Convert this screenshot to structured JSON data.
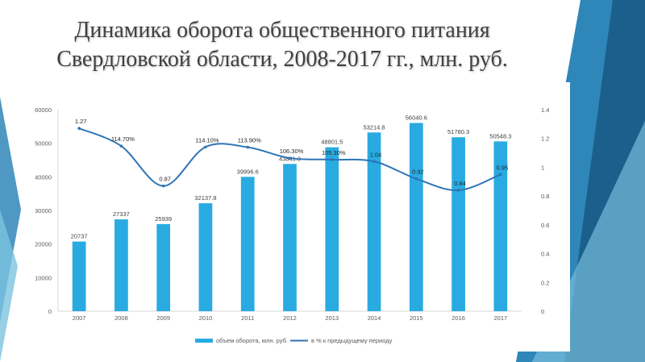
{
  "slide": {
    "title_line1": "Динамика оборота общественного питания",
    "title_line2": "Свердловской области, 2008-2017 гг., млн. руб."
  },
  "colors": {
    "bar": "#29abe2",
    "line": "#2e75b6",
    "deco_dark": "#1b5f8c",
    "deco_mid": "#2f86b8",
    "deco_light": "#7cc3e0"
  },
  "chart_data": {
    "type": "bar",
    "categories": [
      "2007",
      "2008",
      "2009",
      "2010",
      "2011",
      "2012",
      "2013",
      "2014",
      "2015",
      "2016",
      "2017"
    ],
    "series": [
      {
        "name": "объем оборота, млн. руб.",
        "type": "bar",
        "axis": "left",
        "values": [
          20737,
          27337,
          25939,
          32137.8,
          39996.6,
          43841.3,
          48801.5,
          53214.8,
          56040.6,
          51780.3,
          50548.3
        ],
        "labels": [
          "20737",
          "27337",
          "25939",
          "32137.8",
          "39996.6",
          "43841.3",
          "48801.5",
          "53214.8",
          "56040.6",
          "51780.3",
          "50548.3"
        ]
      },
      {
        "name": "в % к предыдущему периоду",
        "type": "line",
        "axis": "right",
        "values": [
          1.27,
          1.147,
          0.87,
          1.141,
          1.139,
          1.063,
          1.053,
          1.04,
          0.92,
          0.84,
          0.95
        ],
        "labels": [
          "1.27",
          "114.70%",
          "0.87",
          "114.10%",
          "113.90%",
          "106.30%",
          "105.30%",
          "1.04",
          "0.92",
          "0.84",
          "0.95"
        ]
      }
    ],
    "y_left": {
      "min": 0,
      "max": 60000,
      "ticks": [
        "0",
        "10000",
        "20000",
        "30000",
        "40000",
        "50000",
        "60000"
      ]
    },
    "y_right": {
      "min": 0,
      "max": 1.4,
      "ticks": [
        "0",
        "0.2",
        "0.4",
        "0.6",
        "0.8",
        "1",
        "1.2",
        "1.4"
      ]
    },
    "legend_position": "bottom",
    "grid": false
  }
}
